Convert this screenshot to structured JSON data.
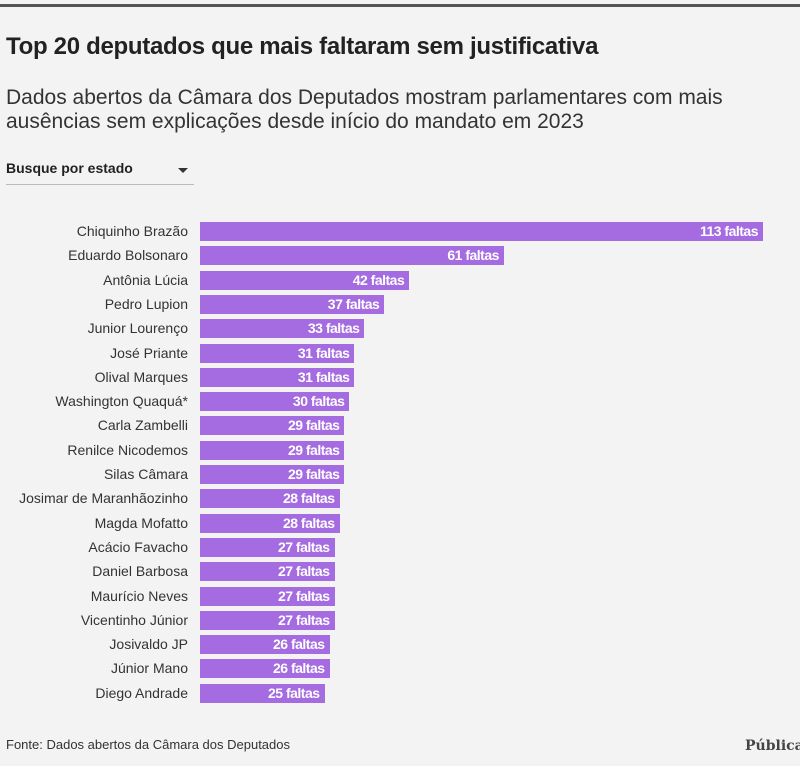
{
  "title": "Top 20 deputados que mais faltaram sem justificativa",
  "subtitle": "Dados abertos da Câmara dos Deputados mostram parlamentares com mais ausências sem explicações desde início do mandato em 2023",
  "dropdown": {
    "label": "Busque por estado"
  },
  "source": "Fonte: Dados abertos da Câmara dos Deputados",
  "logo": "Pública",
  "colors": {
    "bar": "#a56be0",
    "background": "#f3f3f3"
  },
  "chart_data": {
    "type": "bar",
    "orientation": "horizontal",
    "value_suffix": " faltas",
    "xlim": [
      0,
      113
    ],
    "categories": [
      "Chiquinho Brazão",
      "Eduardo Bolsonaro",
      "Antônia Lúcia",
      "Pedro Lupion",
      "Junior Lourenço",
      "José Priante",
      "Olival Marques",
      "Washington Quaquá*",
      "Carla Zambelli",
      "Renilce Nicodemos",
      "Silas Câmara",
      "Josimar de Maranhãozinho",
      "Magda Mofatto",
      "Acácio Favacho",
      "Daniel Barbosa",
      "Maurício Neves",
      "Vicentinho Júnior",
      "Josivaldo JP",
      "Júnior Mano",
      "Diego Andrade"
    ],
    "values": [
      113,
      61,
      42,
      37,
      33,
      31,
      31,
      30,
      29,
      29,
      29,
      28,
      28,
      27,
      27,
      27,
      27,
      26,
      26,
      25
    ]
  }
}
